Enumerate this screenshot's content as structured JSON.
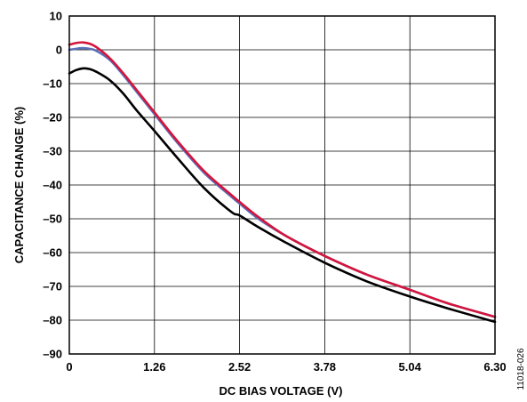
{
  "chart_data": {
    "type": "line",
    "title": "",
    "xlabel": "DC BIAS VOLTAGE (V)",
    "ylabel": "CAPACITANCE CHANGE (%)",
    "xlim": [
      0,
      6.3
    ],
    "ylim": [
      -90,
      10
    ],
    "x_ticks": [
      0,
      1.26,
      2.52,
      3.78,
      5.04,
      6.3
    ],
    "x_tick_labels": [
      "0",
      "1.26",
      "2.52",
      "3.78",
      "5.04",
      "6.30"
    ],
    "y_ticks": [
      10,
      0,
      -10,
      -20,
      -30,
      -40,
      -50,
      -60,
      -70,
      -80,
      -90
    ],
    "y_tick_labels": [
      "10",
      "0",
      "–10",
      "–20",
      "–30",
      "–40",
      "–50",
      "–60",
      "–70",
      "–80",
      "–90"
    ],
    "grid": true,
    "legend": "none",
    "series": [
      {
        "color": "#000000",
        "x": [
          0,
          0.1,
          0.2,
          0.3,
          0.4,
          0.6,
          0.8,
          1.0,
          1.26,
          1.6,
          2.0,
          2.4,
          2.52,
          2.8,
          3.2,
          3.78,
          4.4,
          5.04,
          5.6,
          6.3
        ],
        "y": [
          -7,
          -6,
          -5.5,
          -5.7,
          -6.5,
          -9,
          -13,
          -18,
          -24,
          -32,
          -41,
          -48,
          -49,
          -52.5,
          -57,
          -63,
          -68.5,
          -73,
          -76.5,
          -80.5
        ]
      },
      {
        "color": "#5a6fb8",
        "x": [
          0,
          0.1,
          0.2,
          0.3,
          0.4,
          0.6,
          0.8,
          1.0,
          1.26,
          1.6,
          2.0,
          2.4,
          2.52,
          2.8,
          3.2,
          3.78,
          4.4,
          5.04,
          5.6,
          6.3
        ],
        "y": [
          0,
          0.3,
          0.5,
          0.3,
          -0.3,
          -3,
          -7.5,
          -12.5,
          -19,
          -27.5,
          -36.5,
          -43.5,
          -45.5,
          -50,
          -55,
          -61,
          -66.5,
          -71,
          -75,
          -79
        ]
      },
      {
        "color": "#d4143c",
        "x": [
          0,
          0.1,
          0.2,
          0.3,
          0.4,
          0.6,
          0.8,
          1.0,
          1.26,
          1.6,
          2.0,
          2.4,
          2.52,
          2.8,
          3.2,
          3.78,
          4.4,
          5.04,
          5.6,
          6.3
        ],
        "y": [
          1.5,
          2,
          2.2,
          1.8,
          0.8,
          -2.5,
          -7,
          -12,
          -18.5,
          -27,
          -36,
          -43,
          -45,
          -49.5,
          -55,
          -61,
          -66.5,
          -71,
          -75,
          -79
        ]
      }
    ]
  },
  "figure_id": "11018-026"
}
